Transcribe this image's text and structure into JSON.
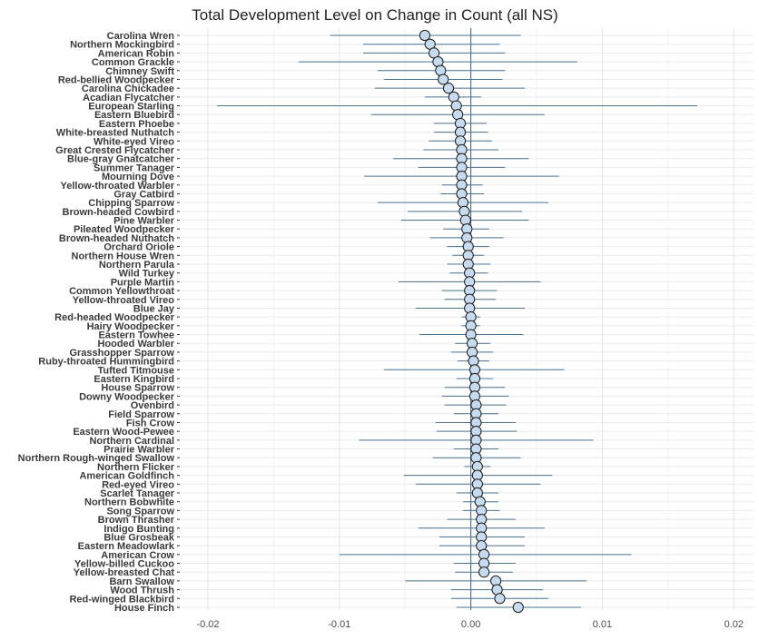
{
  "chart_data": {
    "type": "scatter",
    "title": "Total Development Level on Change in Count (all NS)",
    "xlabel": "",
    "ylabel": "",
    "xlim": [
      -0.022,
      0.0215
    ],
    "x_ticks": [
      -0.02,
      -0.01,
      0,
      0.01,
      0.02
    ],
    "x_tick_labels": [
      "-0.02",
      "-0.01",
      "0.00",
      "0.01",
      "0.02"
    ],
    "grid": true,
    "legend": "none",
    "reference_line_x": 0,
    "colors": {
      "point_fill": "#c6dbef",
      "point_stroke": "#1b1b1b",
      "error_bar": "#4a7391",
      "zero_line": "#3b5f7a",
      "grid": "#ebebeb"
    },
    "series": [
      {
        "points": [
          {
            "species": "Carolina Wren",
            "estimate": -0.0035,
            "lower": -0.0107,
            "upper": 0.0038
          },
          {
            "species": "Northern Mockingbird",
            "estimate": -0.0031,
            "lower": -0.0082,
            "upper": 0.0022
          },
          {
            "species": "American Robin",
            "estimate": -0.0028,
            "lower": -0.0082,
            "upper": 0.0026
          },
          {
            "species": "Common Grackle",
            "estimate": -0.0025,
            "lower": -0.0131,
            "upper": 0.0081
          },
          {
            "species": "Chimney Swift",
            "estimate": -0.0023,
            "lower": -0.0071,
            "upper": 0.0026
          },
          {
            "species": "Red-bellied Woodpecker",
            "estimate": -0.0021,
            "lower": -0.0066,
            "upper": 0.0024
          },
          {
            "species": "Carolina Chickadee",
            "estimate": -0.0017,
            "lower": -0.0073,
            "upper": 0.0041
          },
          {
            "species": "Acadian Flycatcher",
            "estimate": -0.0013,
            "lower": -0.0035,
            "upper": 0.0008
          },
          {
            "species": "European Starling",
            "estimate": -0.0011,
            "lower": -0.0193,
            "upper": 0.0172
          },
          {
            "species": "Eastern Bluebird",
            "estimate": -0.001,
            "lower": -0.0076,
            "upper": 0.0056
          },
          {
            "species": "Eastern Phoebe",
            "estimate": -0.0008,
            "lower": -0.0028,
            "upper": 0.0012
          },
          {
            "species": "White-breasted Nuthatch",
            "estimate": -0.0008,
            "lower": -0.0028,
            "upper": 0.0013
          },
          {
            "species": "White-eyed Vireo",
            "estimate": -0.0008,
            "lower": -0.0032,
            "upper": 0.0016
          },
          {
            "species": "Great Crested Flycatcher",
            "estimate": -0.0007,
            "lower": -0.0036,
            "upper": 0.0021
          },
          {
            "species": "Blue-gray Gnatcatcher",
            "estimate": -0.0007,
            "lower": -0.0059,
            "upper": 0.0044
          },
          {
            "species": "Summer Tanager",
            "estimate": -0.0007,
            "lower": -0.004,
            "upper": 0.0026
          },
          {
            "species": "Mourning Dove",
            "estimate": -0.0007,
            "lower": -0.0081,
            "upper": 0.0067
          },
          {
            "species": "Yellow-throated Warbler",
            "estimate": -0.0007,
            "lower": -0.0022,
            "upper": 0.0009
          },
          {
            "species": "Gray Catbird",
            "estimate": -0.0007,
            "lower": -0.0023,
            "upper": 0.001
          },
          {
            "species": "Chipping Sparrow",
            "estimate": -0.0006,
            "lower": -0.0071,
            "upper": 0.0059
          },
          {
            "species": "Brown-headed Cowbird",
            "estimate": -0.0005,
            "lower": -0.0048,
            "upper": 0.0039
          },
          {
            "species": "Pine Warbler",
            "estimate": -0.0004,
            "lower": -0.0053,
            "upper": 0.0044
          },
          {
            "species": "Pileated Woodpecker",
            "estimate": -0.0003,
            "lower": -0.0021,
            "upper": 0.0014
          },
          {
            "species": "Brown-headed Nuthatch",
            "estimate": -0.0003,
            "lower": -0.0031,
            "upper": 0.0025
          },
          {
            "species": "Orchard Oriole",
            "estimate": -0.0002,
            "lower": -0.0018,
            "upper": 0.0014
          },
          {
            "species": "Northern House Wren",
            "estimate": -0.0002,
            "lower": -0.0014,
            "upper": 0.001
          },
          {
            "species": "Northern Parula",
            "estimate": -0.0002,
            "lower": -0.0018,
            "upper": 0.0015
          },
          {
            "species": "Wild Turkey",
            "estimate": -0.0001,
            "lower": -0.0016,
            "upper": 0.0013
          },
          {
            "species": "Purple Martin",
            "estimate": -0.0001,
            "lower": -0.0055,
            "upper": 0.0053
          },
          {
            "species": "Common Yellowthroat",
            "estimate": -0.0001,
            "lower": -0.0022,
            "upper": 0.002
          },
          {
            "species": "Yellow-throated Vireo",
            "estimate": -0.0001,
            "lower": -0.002,
            "upper": 0.0019
          },
          {
            "species": "Blue Jay",
            "estimate": -0.0001,
            "lower": -0.0042,
            "upper": 0.0041
          },
          {
            "species": "Red-headed Woodpecker",
            "estimate": 0.0,
            "lower": -0.0007,
            "upper": 0.0007
          },
          {
            "species": "Hairy Woodpecker",
            "estimate": 0.0,
            "lower": -0.0007,
            "upper": 0.0007
          },
          {
            "species": "Eastern Towhee",
            "estimate": 0.0,
            "lower": -0.0039,
            "upper": 0.004
          },
          {
            "species": "Hooded Warbler",
            "estimate": 0.0001,
            "lower": -0.0012,
            "upper": 0.0015
          },
          {
            "species": "Grasshopper Sparrow",
            "estimate": 0.0001,
            "lower": -0.0015,
            "upper": 0.0017
          },
          {
            "species": "Ruby-throated Hummingbird",
            "estimate": 0.0002,
            "lower": -0.001,
            "upper": 0.0014
          },
          {
            "species": "Tufted Titmouse",
            "estimate": 0.0003,
            "lower": -0.0066,
            "upper": 0.0071
          },
          {
            "species": "Eastern Kingbird",
            "estimate": 0.0003,
            "lower": -0.0011,
            "upper": 0.0017
          },
          {
            "species": "House Sparrow",
            "estimate": 0.0003,
            "lower": -0.002,
            "upper": 0.0026
          },
          {
            "species": "Downy Woodpecker",
            "estimate": 0.0003,
            "lower": -0.0022,
            "upper": 0.0029
          },
          {
            "species": "Ovenbird",
            "estimate": 0.0004,
            "lower": -0.002,
            "upper": 0.0027
          },
          {
            "species": "Field Sparrow",
            "estimate": 0.0004,
            "lower": -0.0013,
            "upper": 0.0021
          },
          {
            "species": "Fish Crow",
            "estimate": 0.0004,
            "lower": -0.0027,
            "upper": 0.0034
          },
          {
            "species": "Eastern Wood-Pewee",
            "estimate": 0.0004,
            "lower": -0.0026,
            "upper": 0.0035
          },
          {
            "species": "Northern Cardinal",
            "estimate": 0.0004,
            "lower": -0.0085,
            "upper": 0.0093
          },
          {
            "species": "Prairie Warbler",
            "estimate": 0.0004,
            "lower": -0.0013,
            "upper": 0.0021
          },
          {
            "species": "Northern Rough-winged Swallow",
            "estimate": 0.0004,
            "lower": -0.0029,
            "upper": 0.0038
          },
          {
            "species": "Northern Flicker",
            "estimate": 0.0005,
            "lower": -0.0005,
            "upper": 0.0015
          },
          {
            "species": "American Goldfinch",
            "estimate": 0.0005,
            "lower": -0.0051,
            "upper": 0.0062
          },
          {
            "species": "Red-eyed Vireo",
            "estimate": 0.0005,
            "lower": -0.0042,
            "upper": 0.0053
          },
          {
            "species": "Scarlet Tanager",
            "estimate": 0.0005,
            "lower": -0.0011,
            "upper": 0.0021
          },
          {
            "species": "Northern Bobwhite",
            "estimate": 0.0007,
            "lower": -0.0006,
            "upper": 0.0021
          },
          {
            "species": "Song Sparrow",
            "estimate": 0.0008,
            "lower": -0.0006,
            "upper": 0.0022
          },
          {
            "species": "Brown Thrasher",
            "estimate": 0.0008,
            "lower": -0.0018,
            "upper": 0.0034
          },
          {
            "species": "Indigo Bunting",
            "estimate": 0.0008,
            "lower": -0.004,
            "upper": 0.0056
          },
          {
            "species": "Blue Grosbeak",
            "estimate": 0.0008,
            "lower": -0.0024,
            "upper": 0.0041
          },
          {
            "species": "Eastern Meadowlark",
            "estimate": 0.0008,
            "lower": -0.0024,
            "upper": 0.0041
          },
          {
            "species": "American Crow",
            "estimate": 0.001,
            "lower": -0.01,
            "upper": 0.0122
          },
          {
            "species": "Yellow-billed Cuckoo",
            "estimate": 0.001,
            "lower": -0.0013,
            "upper": 0.0034
          },
          {
            "species": "Yellow-breasted Chat",
            "estimate": 0.001,
            "lower": -0.0012,
            "upper": 0.0032
          },
          {
            "species": "Barn Swallow",
            "estimate": 0.0019,
            "lower": -0.005,
            "upper": 0.0088
          },
          {
            "species": "Wood Thrush",
            "estimate": 0.002,
            "lower": -0.0015,
            "upper": 0.0055
          },
          {
            "species": "Red-winged Blackbird",
            "estimate": 0.0022,
            "lower": -0.0015,
            "upper": 0.0059
          },
          {
            "species": "House Finch",
            "estimate": 0.0036,
            "lower": -0.0011,
            "upper": 0.0084
          }
        ]
      }
    ]
  }
}
